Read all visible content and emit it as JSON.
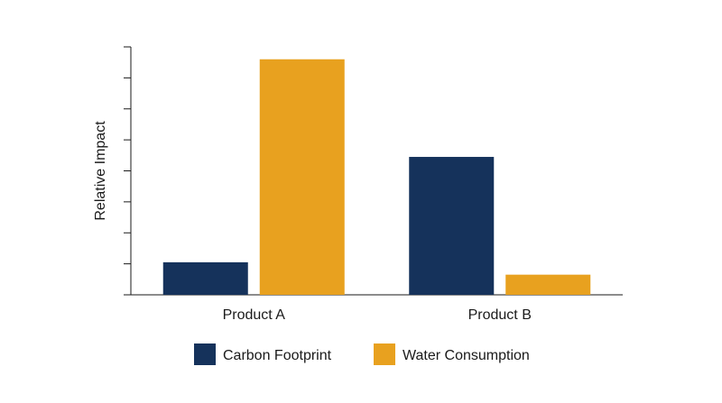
{
  "chart_data": {
    "type": "bar",
    "categories": [
      "Product A",
      "Product B"
    ],
    "series": [
      {
        "name": "Carbon Footprint",
        "color": "#15325b",
        "values": [
          1.05,
          4.45
        ]
      },
      {
        "name": "Water Consumption",
        "color": "#e8a11f",
        "values": [
          7.6,
          0.65
        ]
      }
    ],
    "xlabel": "",
    "ylabel": "Relative Impact",
    "ylim": [
      0,
      8
    ],
    "y_ticks": [
      0,
      1,
      2,
      3,
      4,
      5,
      6,
      7,
      8
    ],
    "y_tick_labels_shown": false,
    "grid": false,
    "legend": "bottom-center"
  }
}
